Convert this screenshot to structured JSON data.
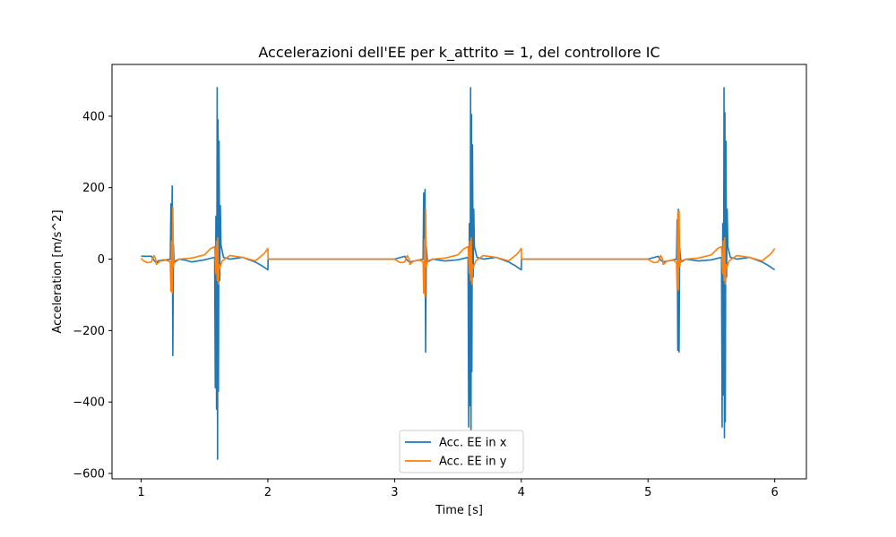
{
  "chart_data": {
    "type": "line",
    "title": "Accelerazioni dell'EE per k_attrito = 1, del controllore IC",
    "xlabel": "Time [s]",
    "ylabel": "Acceleration [m/s^2]",
    "xlim": [
      0.77,
      6.25
    ],
    "ylim": [
      -615,
      545
    ],
    "xticks": [
      1,
      2,
      3,
      4,
      5,
      6
    ],
    "yticks": [
      -600,
      -400,
      -200,
      0,
      200,
      400
    ],
    "ytick_labels": [
      "−600",
      "−400",
      "−200",
      "0",
      "200",
      "400"
    ],
    "legend_position": "bottom-center",
    "grid": false,
    "series": [
      {
        "name": "Acc. EE in x",
        "color": "#1f77b4",
        "points": [
          [
            1.0,
            8
          ],
          [
            1.08,
            8
          ],
          [
            1.1,
            -3
          ],
          [
            1.12,
            -10
          ],
          [
            1.14,
            -4
          ],
          [
            1.16,
            -3
          ],
          [
            1.2,
            -2
          ],
          [
            1.23,
            0
          ],
          [
            1.235,
            155
          ],
          [
            1.24,
            -20
          ],
          [
            1.245,
            205
          ],
          [
            1.25,
            -270
          ],
          [
            1.255,
            40
          ],
          [
            1.26,
            -10
          ],
          [
            1.3,
            0
          ],
          [
            1.35,
            -3
          ],
          [
            1.4,
            -8
          ],
          [
            1.5,
            -2
          ],
          [
            1.58,
            5
          ],
          [
            1.585,
            -360
          ],
          [
            1.59,
            120
          ],
          [
            1.595,
            -420
          ],
          [
            1.6,
            480
          ],
          [
            1.603,
            -560
          ],
          [
            1.607,
            390
          ],
          [
            1.61,
            -370
          ],
          [
            1.615,
            330
          ],
          [
            1.62,
            -60
          ],
          [
            1.625,
            150
          ],
          [
            1.63,
            40
          ],
          [
            1.65,
            5
          ],
          [
            1.7,
            0
          ],
          [
            1.8,
            5
          ],
          [
            1.9,
            -8
          ],
          [
            1.95,
            -18
          ],
          [
            2.0,
            -30
          ],
          [
            2.002,
            0
          ],
          [
            3.0,
            0
          ],
          [
            3.08,
            8
          ],
          [
            3.1,
            -3
          ],
          [
            3.12,
            -8
          ],
          [
            3.2,
            -2
          ],
          [
            3.225,
            0
          ],
          [
            3.23,
            185
          ],
          [
            3.235,
            -25
          ],
          [
            3.24,
            195
          ],
          [
            3.245,
            -260
          ],
          [
            3.25,
            35
          ],
          [
            3.26,
            -8
          ],
          [
            3.3,
            0
          ],
          [
            3.4,
            -5
          ],
          [
            3.5,
            -2
          ],
          [
            3.58,
            5
          ],
          [
            3.585,
            -470
          ],
          [
            3.59,
            100
          ],
          [
            3.595,
            -410
          ],
          [
            3.6,
            480
          ],
          [
            3.603,
            -520
          ],
          [
            3.607,
            405
          ],
          [
            3.61,
            -315
          ],
          [
            3.615,
            320
          ],
          [
            3.62,
            -50
          ],
          [
            3.625,
            140
          ],
          [
            3.63,
            35
          ],
          [
            3.65,
            5
          ],
          [
            3.7,
            0
          ],
          [
            3.8,
            5
          ],
          [
            3.9,
            -8
          ],
          [
            3.95,
            -18
          ],
          [
            4.0,
            -30
          ],
          [
            4.002,
            0
          ],
          [
            5.0,
            0
          ],
          [
            5.08,
            8
          ],
          [
            5.1,
            -3
          ],
          [
            5.12,
            -8
          ],
          [
            5.2,
            -2
          ],
          [
            5.225,
            0
          ],
          [
            5.23,
            110
          ],
          [
            5.235,
            -255
          ],
          [
            5.24,
            140
          ],
          [
            5.245,
            -260
          ],
          [
            5.25,
            30
          ],
          [
            5.26,
            -8
          ],
          [
            5.3,
            0
          ],
          [
            5.4,
            -5
          ],
          [
            5.5,
            -2
          ],
          [
            5.58,
            5
          ],
          [
            5.585,
            -470
          ],
          [
            5.59,
            100
          ],
          [
            5.595,
            -380
          ],
          [
            5.6,
            480
          ],
          [
            5.603,
            -500
          ],
          [
            5.607,
            410
          ],
          [
            5.61,
            -455
          ],
          [
            5.615,
            330
          ],
          [
            5.62,
            -50
          ],
          [
            5.625,
            140
          ],
          [
            5.63,
            35
          ],
          [
            5.65,
            5
          ],
          [
            5.7,
            0
          ],
          [
            5.8,
            5
          ],
          [
            5.9,
            -8
          ],
          [
            5.95,
            -18
          ],
          [
            6.0,
            -30
          ]
        ]
      },
      {
        "name": "Acc. EE in y",
        "color": "#ff7f0e",
        "points": [
          [
            1.0,
            2
          ],
          [
            1.02,
            -5
          ],
          [
            1.05,
            -10
          ],
          [
            1.08,
            -8
          ],
          [
            1.1,
            10
          ],
          [
            1.115,
            0
          ],
          [
            1.12,
            -15
          ],
          [
            1.15,
            -5
          ],
          [
            1.2,
            -3
          ],
          [
            1.23,
            -8
          ],
          [
            1.235,
            -90
          ],
          [
            1.24,
            50
          ],
          [
            1.245,
            -95
          ],
          [
            1.25,
            145
          ],
          [
            1.255,
            -20
          ],
          [
            1.26,
            -5
          ],
          [
            1.3,
            0
          ],
          [
            1.4,
            3
          ],
          [
            1.5,
            12
          ],
          [
            1.55,
            30
          ],
          [
            1.58,
            35
          ],
          [
            1.59,
            -40
          ],
          [
            1.595,
            50
          ],
          [
            1.6,
            -60
          ],
          [
            1.605,
            60
          ],
          [
            1.61,
            -70
          ],
          [
            1.615,
            -15
          ],
          [
            1.62,
            -25
          ],
          [
            1.64,
            -5
          ],
          [
            1.7,
            10
          ],
          [
            1.8,
            5
          ],
          [
            1.9,
            -5
          ],
          [
            1.97,
            15
          ],
          [
            2.0,
            30
          ],
          [
            2.002,
            0
          ],
          [
            3.0,
            0
          ],
          [
            3.02,
            -5
          ],
          [
            3.05,
            -10
          ],
          [
            3.08,
            -8
          ],
          [
            3.1,
            10
          ],
          [
            3.115,
            0
          ],
          [
            3.12,
            -15
          ],
          [
            3.15,
            -5
          ],
          [
            3.2,
            -3
          ],
          [
            3.225,
            -8
          ],
          [
            3.23,
            -95
          ],
          [
            3.235,
            55
          ],
          [
            3.24,
            -105
          ],
          [
            3.245,
            140
          ],
          [
            3.25,
            -20
          ],
          [
            3.26,
            -5
          ],
          [
            3.3,
            0
          ],
          [
            3.4,
            3
          ],
          [
            3.5,
            12
          ],
          [
            3.55,
            30
          ],
          [
            3.58,
            35
          ],
          [
            3.59,
            -40
          ],
          [
            3.595,
            50
          ],
          [
            3.6,
            -60
          ],
          [
            3.605,
            60
          ],
          [
            3.61,
            -70
          ],
          [
            3.615,
            -15
          ],
          [
            3.62,
            -25
          ],
          [
            3.64,
            -5
          ],
          [
            3.7,
            10
          ],
          [
            3.8,
            5
          ],
          [
            3.9,
            -5
          ],
          [
            3.97,
            15
          ],
          [
            4.0,
            30
          ],
          [
            4.002,
            0
          ],
          [
            5.0,
            0
          ],
          [
            5.02,
            -5
          ],
          [
            5.05,
            -10
          ],
          [
            5.08,
            -8
          ],
          [
            5.1,
            10
          ],
          [
            5.115,
            0
          ],
          [
            5.12,
            -15
          ],
          [
            5.15,
            -5
          ],
          [
            5.2,
            -3
          ],
          [
            5.225,
            -10
          ],
          [
            5.23,
            -90
          ],
          [
            5.235,
            130
          ],
          [
            5.24,
            -85
          ],
          [
            5.245,
            135
          ],
          [
            5.25,
            -20
          ],
          [
            5.26,
            -5
          ],
          [
            5.3,
            0
          ],
          [
            5.4,
            3
          ],
          [
            5.5,
            12
          ],
          [
            5.55,
            30
          ],
          [
            5.58,
            35
          ],
          [
            5.59,
            -40
          ],
          [
            5.595,
            50
          ],
          [
            5.6,
            -60
          ],
          [
            5.605,
            60
          ],
          [
            5.61,
            -70
          ],
          [
            5.615,
            -15
          ],
          [
            5.62,
            -25
          ],
          [
            5.64,
            -5
          ],
          [
            5.7,
            10
          ],
          [
            5.8,
            5
          ],
          [
            5.9,
            -5
          ],
          [
            5.97,
            15
          ],
          [
            6.0,
            30
          ]
        ]
      }
    ]
  }
}
